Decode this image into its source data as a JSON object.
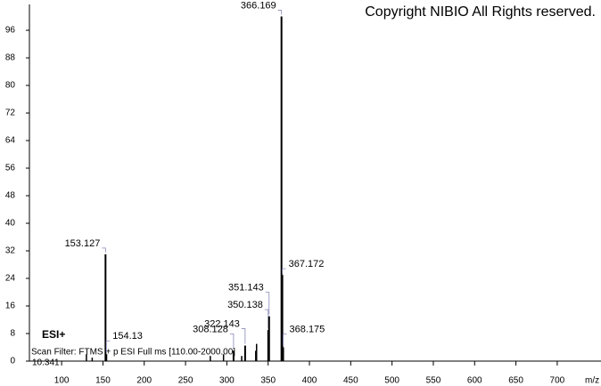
{
  "chart_data": {
    "type": "spectrum",
    "copyright": "Copyright NIBIO All Rights reserved.",
    "ionization": "ESI+",
    "scan_filter": "Scan Filter: FTMS + p ESI Full ms [110.00-2000.00]",
    "retention_time": "10.341",
    "x_label": "m/z",
    "peaks": {
      "x": [
        153.127,
        154.13,
        308.128,
        322.143,
        350.138,
        351.143,
        366.169,
        367.172,
        368.175
      ],
      "values": [
        31,
        2,
        3,
        4.5,
        9,
        13,
        100,
        25,
        4
      ]
    },
    "minor_peaks": {
      "x": [
        130,
        137,
        280,
        296,
        318,
        335,
        336
      ],
      "values": [
        2,
        1,
        1.5,
        2,
        1.5,
        3,
        5
      ]
    },
    "color": "#000000",
    "label_color": "#1a1a9c",
    "xlim": [
      61,
      753
    ],
    "xticks": [
      100,
      150,
      200,
      250,
      300,
      350,
      400,
      450,
      500,
      550,
      600,
      650,
      700
    ],
    "ylim": [
      0,
      103.5
    ],
    "yticks": [
      0,
      8,
      16,
      24,
      32,
      40,
      48,
      56,
      64,
      72,
      80,
      88,
      96
    ]
  }
}
